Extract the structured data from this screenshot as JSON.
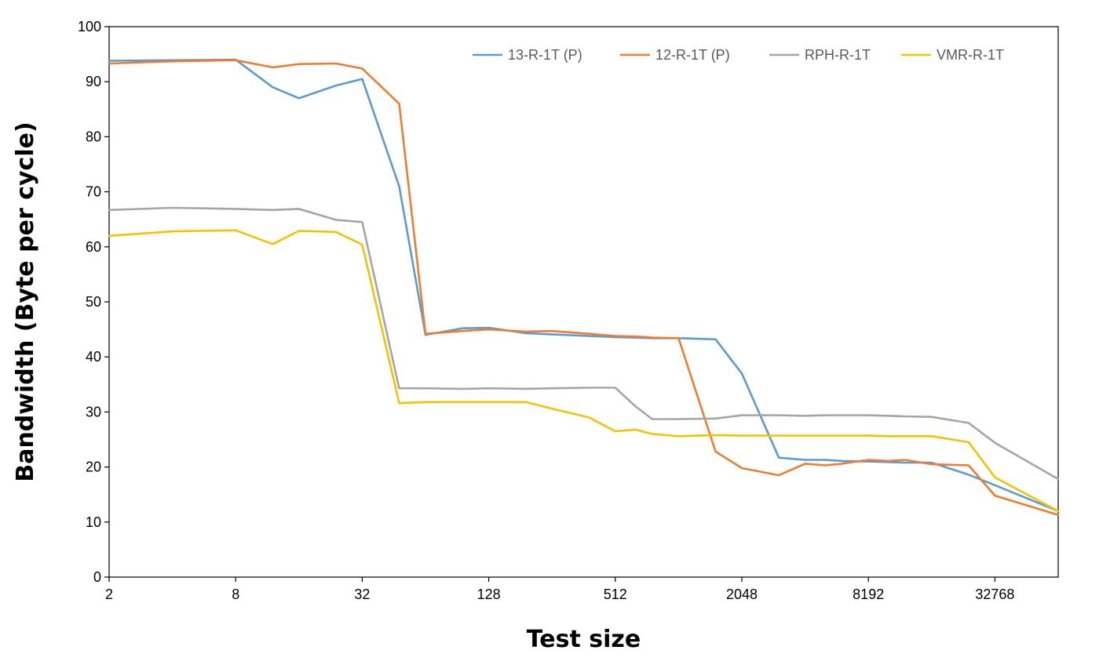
{
  "chart_data": {
    "type": "line",
    "xlabel": "Test size",
    "ylabel": "Bandwidth (Byte per cycle)",
    "x_scale": "log2",
    "xlim": [
      2,
      65536
    ],
    "ylim": [
      0,
      100
    ],
    "y_ticks": [
      0,
      10,
      20,
      30,
      40,
      50,
      60,
      70,
      80,
      90,
      100
    ],
    "x_ticks": [
      2,
      8,
      32,
      128,
      512,
      2048,
      8192,
      32768
    ],
    "x_tick_labels": [
      "2",
      "8",
      "32",
      "128",
      "512",
      "2048",
      "8192",
      "32768"
    ],
    "grid": false,
    "legend_position": "top",
    "x": [
      2,
      4,
      8,
      12,
      16,
      24,
      32,
      48,
      64,
      96,
      128,
      192,
      256,
      384,
      512,
      640,
      768,
      1024,
      1536,
      2048,
      3072,
      4096,
      5120,
      6144,
      8192,
      10240,
      12288,
      16384,
      24576,
      32768,
      65536
    ],
    "series": [
      {
        "name": "13-R-1T (P)",
        "color": "#5B9BD5",
        "values": [
          93.8,
          93.9,
          94.0,
          89.0,
          87.0,
          89.3,
          90.5,
          71.0,
          44.0,
          45.2,
          45.3,
          44.3,
          44.1,
          43.8,
          43.6,
          43.5,
          43.4,
          43.4,
          43.2,
          37.0,
          21.7,
          21.3,
          21.3,
          21.1,
          21.0,
          20.9,
          20.8,
          20.8,
          18.6,
          16.7,
          12.0
        ]
      },
      {
        "name": "12-R-1T (P)",
        "color": "#ED7D31",
        "values": [
          93.3,
          93.7,
          93.9,
          92.6,
          93.2,
          93.3,
          92.4,
          86.0,
          44.2,
          44.7,
          45.0,
          44.6,
          44.7,
          44.2,
          43.8,
          43.7,
          43.5,
          43.4,
          22.8,
          19.8,
          18.5,
          20.6,
          20.3,
          20.6,
          21.3,
          21.1,
          21.3,
          20.5,
          20.3,
          14.8,
          11.3
        ]
      },
      {
        "name": "RPH-R-1T",
        "color": "#A5A5A5",
        "values": [
          66.7,
          67.1,
          66.9,
          66.7,
          66.9,
          64.9,
          64.5,
          34.3,
          34.3,
          34.2,
          34.3,
          34.2,
          34.3,
          34.4,
          34.4,
          31.0,
          28.7,
          28.7,
          28.8,
          29.4,
          29.4,
          29.3,
          29.4,
          29.4,
          29.4,
          29.3,
          29.2,
          29.1,
          28.0,
          24.4,
          17.8
        ]
      },
      {
        "name": "VMR-R-1T",
        "color": "#F5C200",
        "values": [
          62.0,
          62.8,
          63.0,
          60.5,
          62.9,
          62.7,
          60.4,
          31.6,
          31.8,
          31.8,
          31.8,
          31.8,
          30.6,
          29.0,
          26.5,
          26.8,
          26.0,
          25.6,
          25.8,
          25.7,
          25.7,
          25.7,
          25.7,
          25.7,
          25.7,
          25.6,
          25.6,
          25.6,
          24.5,
          18.1,
          12.0
        ]
      }
    ]
  }
}
